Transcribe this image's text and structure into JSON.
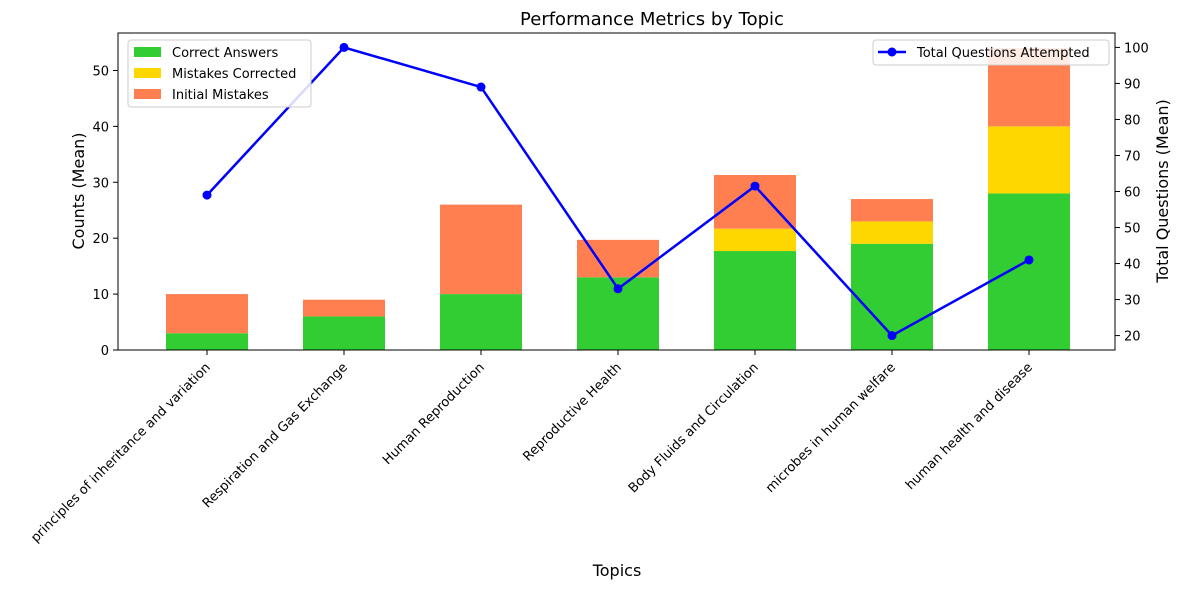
{
  "chart_data": {
    "type": "bar",
    "title": "Performance Metrics by Topic",
    "xlabel": "Topics",
    "ylabel": "Counts (Mean)",
    "y2label": "Total Questions (Mean)",
    "categories": [
      "principles of inheritance and variation",
      "Respiration and Gas Exchange",
      "Human Reproduction",
      "Reproductive Health",
      "Body Fluids and Circulation",
      "microbes in human welfare",
      "human health and disease"
    ],
    "stacked_series": [
      {
        "name": "Correct Answers",
        "color": "#32cd32",
        "values": [
          3,
          6,
          10,
          13,
          17.7,
          19,
          28
        ]
      },
      {
        "name": "Mistakes Corrected",
        "color": "#ffd700",
        "values": [
          0,
          0,
          0,
          0,
          4,
          4,
          12
        ]
      },
      {
        "name": "Initial Mistakes",
        "color": "#ff7f50",
        "values": [
          7,
          3,
          16,
          6.7,
          9.6,
          4,
          14
        ]
      }
    ],
    "line_series": {
      "name": "Total Questions Attempted",
      "color": "#0000ff",
      "values": [
        59,
        100,
        89,
        33,
        61.5,
        20,
        41
      ]
    },
    "ylim": [
      0,
      56.7
    ],
    "y_ticks": [
      0,
      10,
      20,
      30,
      40,
      50
    ],
    "y2lim": [
      16,
      104
    ],
    "y2_ticks": [
      20,
      30,
      40,
      50,
      60,
      70,
      80,
      90,
      100
    ],
    "legend_left": "upper-left",
    "legend_right": "upper-right",
    "grid": false
  }
}
